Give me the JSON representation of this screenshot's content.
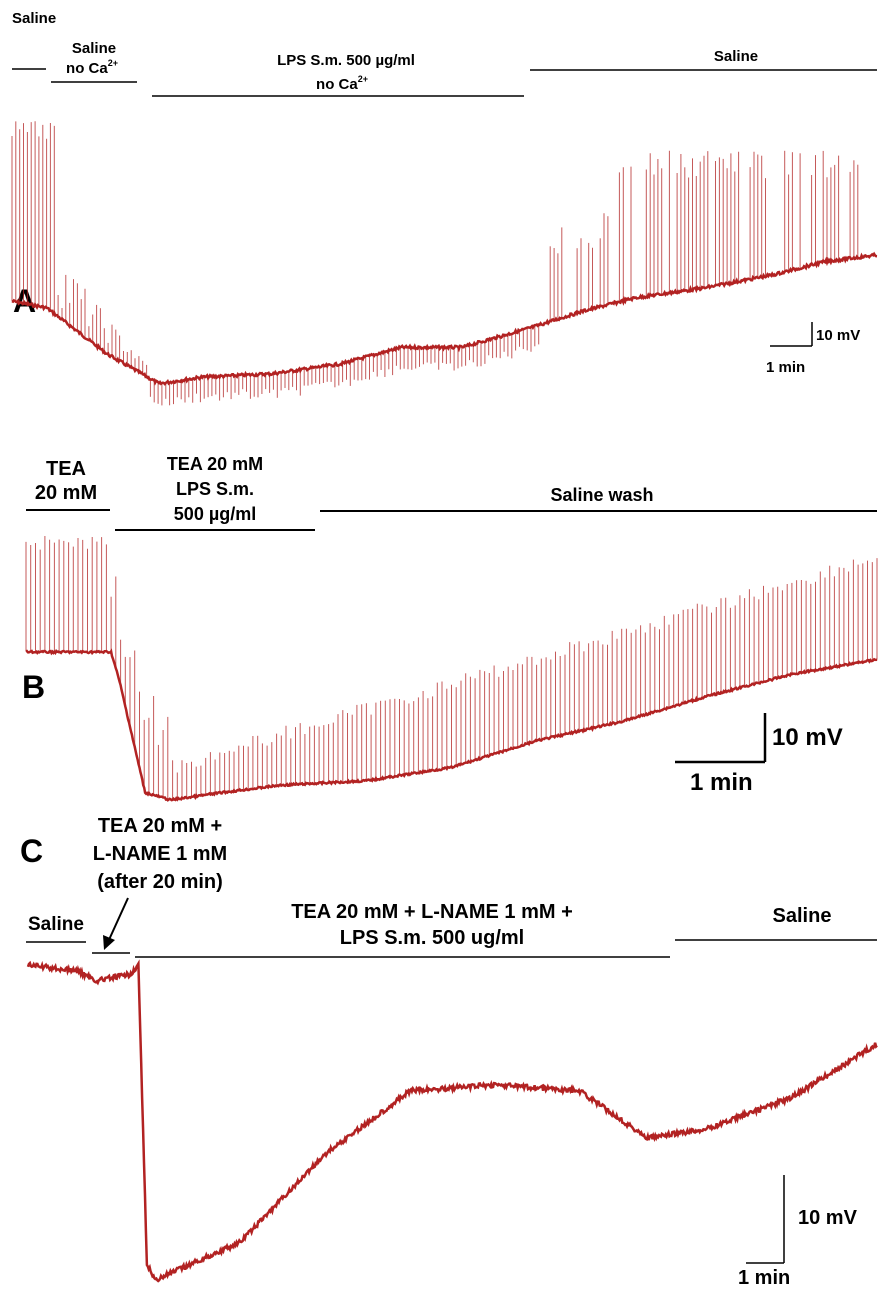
{
  "trace_color": "#b22222",
  "panels": [
    {
      "id": "A",
      "panel_label": "A",
      "bars": [
        {
          "label": "Saline",
          "lines": [
            "Saline"
          ]
        },
        {
          "label": "Saline no Ca2+",
          "lines": [
            "Saline",
            "no Ca"
          ],
          "superscript": "2+"
        },
        {
          "label": "LPS S.m. 500 µg/ml no Ca2+",
          "lines": [
            "LPS S.m. 500 µg/ml",
            "no Ca"
          ],
          "superscript": "2+"
        },
        {
          "label": "Saline",
          "lines": [
            "Saline"
          ]
        }
      ],
      "scale_voltage": "10 mV",
      "scale_time": "1 min"
    },
    {
      "id": "B",
      "panel_label": "B",
      "bars": [
        {
          "label": "TEA 20 mM",
          "lines": [
            "TEA",
            "20 mM"
          ]
        },
        {
          "label": "TEA 20 mM LPS S.m. 500 µg/ml",
          "lines": [
            "TEA 20 mM",
            "LPS S.m.",
            "500 µg/ml"
          ]
        },
        {
          "label": "Saline wash",
          "lines": [
            "Saline wash"
          ]
        }
      ],
      "scale_voltage": "10 mV",
      "scale_time": "1 min"
    },
    {
      "id": "C",
      "panel_label": "C",
      "bars": [
        {
          "label": "Saline",
          "lines": [
            "Saline"
          ]
        },
        {
          "label": "TEA 20 mM + L-NAME 1 mM (after 20 min)",
          "lines": [
            "TEA 20 mM +",
            "L-NAME 1 mM",
            "(after 20 min)"
          ]
        },
        {
          "label": "TEA 20 mM + L-NAME 1 mM + LPS S.m. 500 ug/ml",
          "lines": [
            "TEA 20 mM + L-NAME 1 mM +",
            "LPS S.m. 500 ug/ml"
          ]
        },
        {
          "label": "Saline",
          "lines": [
            "Saline"
          ]
        }
      ],
      "scale_voltage": "10 mV",
      "scale_time": "1 min"
    }
  ],
  "chart_data": [
    {
      "type": "line",
      "panel": "A",
      "xlabel": "",
      "ylabel": "",
      "series": [
        {
          "x": [
            0,
            0.04,
            0.07,
            0.11,
            0.17,
            0.22,
            0.3,
            0.38,
            0.45,
            0.52,
            0.6,
            0.66,
            0.72,
            0.8,
            0.88,
            0.94,
            1.0
          ],
          "values": [
            0.64,
            0.66,
            0.72,
            0.8,
            0.89,
            0.87,
            0.86,
            0.83,
            0.78,
            0.78,
            0.72,
            0.67,
            0.63,
            0.6,
            0.56,
            0.52,
            0.5
          ]
        }
      ]
    },
    {
      "type": "line",
      "panel": "B",
      "xlabel": "",
      "ylabel": "",
      "series": [
        {
          "x": [
            0,
            0.1,
            0.11,
            0.14,
            0.17,
            0.23,
            0.3,
            0.4,
            0.5,
            0.6,
            0.7,
            0.8,
            0.9,
            1.0
          ],
          "values": [
            0.0,
            0.0,
            0.2,
            0.95,
            1.0,
            0.95,
            0.9,
            0.87,
            0.78,
            0.6,
            0.47,
            0.3,
            0.15,
            0.05
          ]
        }
      ]
    },
    {
      "type": "line",
      "panel": "C",
      "xlabel": "",
      "ylabel": "",
      "series": [
        {
          "x": [
            0,
            0.06,
            0.08,
            0.12,
            0.13,
            0.14,
            0.15,
            0.25,
            0.35,
            0.45,
            0.55,
            0.65,
            0.73,
            0.8,
            0.9,
            1.0
          ],
          "values": [
            0.0,
            0.02,
            0.05,
            0.03,
            0.0,
            0.95,
            1.0,
            0.88,
            0.6,
            0.4,
            0.38,
            0.4,
            0.55,
            0.52,
            0.42,
            0.25
          ]
        }
      ]
    }
  ]
}
